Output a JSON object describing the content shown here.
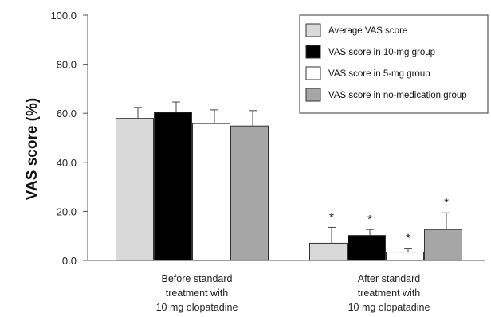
{
  "chart_data": {
    "type": "bar",
    "title": "",
    "xlabel": "",
    "ylabel": "VAS  score (%)",
    "ylim": [
      0,
      100
    ],
    "yticks": [
      "0.0",
      "20.0",
      "40.0",
      "60.0",
      "80.0",
      "100.0"
    ],
    "grid": false,
    "legend_position": "top-right",
    "categories": [
      [
        "Before standard",
        "treatment with",
        "10 mg olopatadine"
      ],
      [
        "After standard",
        "treatment with",
        "10 mg olopatadine"
      ]
    ],
    "series": [
      {
        "name": "Average VAS score",
        "color": "#d9d9d9",
        "values": [
          57.9,
          7.0
        ],
        "errors": [
          4.5,
          6.5
        ],
        "significant": [
          false,
          true
        ]
      },
      {
        "name": "VAS score in 10-mg group",
        "color": "#000000",
        "values": [
          60.4,
          10.2
        ],
        "errors": [
          4.2,
          2.4
        ],
        "significant": [
          false,
          true
        ]
      },
      {
        "name": "VAS score in 5-mg group",
        "color": "#ffffff",
        "values": [
          55.8,
          3.4
        ],
        "errors": [
          5.6,
          1.6
        ],
        "significant": [
          false,
          true
        ]
      },
      {
        "name": "VAS score in no-medication group",
        "color": "#a6a6a6",
        "values": [
          54.8,
          12.6
        ],
        "errors": [
          6.3,
          6.8
        ],
        "significant": [
          false,
          true
        ]
      }
    ],
    "annotation_mark": "*"
  }
}
